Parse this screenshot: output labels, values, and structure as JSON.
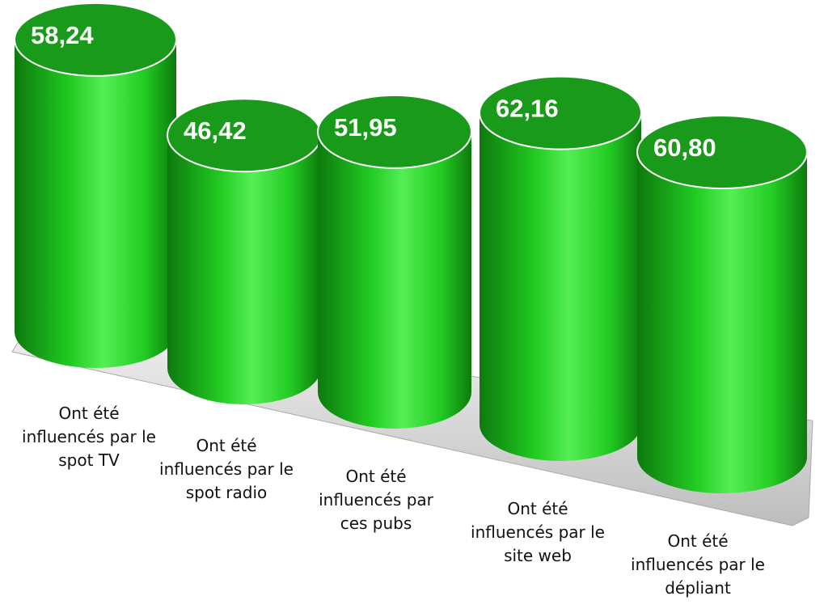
{
  "chart_data": {
    "type": "cylinder",
    "categories": [
      "Ont été influencés par le spot TV",
      "Ont été influencés par le spot radio",
      "Ont été influencés par ces pubs",
      "Ont été influencés par le site web",
      "Ont été influencés par le dépliant"
    ],
    "values": [
      58.24,
      46.42,
      51.95,
      62.16,
      60.8
    ],
    "value_labels": [
      "58,24",
      "46,42",
      "51,95",
      "62,16",
      "60,80"
    ],
    "color": "#22cc22"
  }
}
